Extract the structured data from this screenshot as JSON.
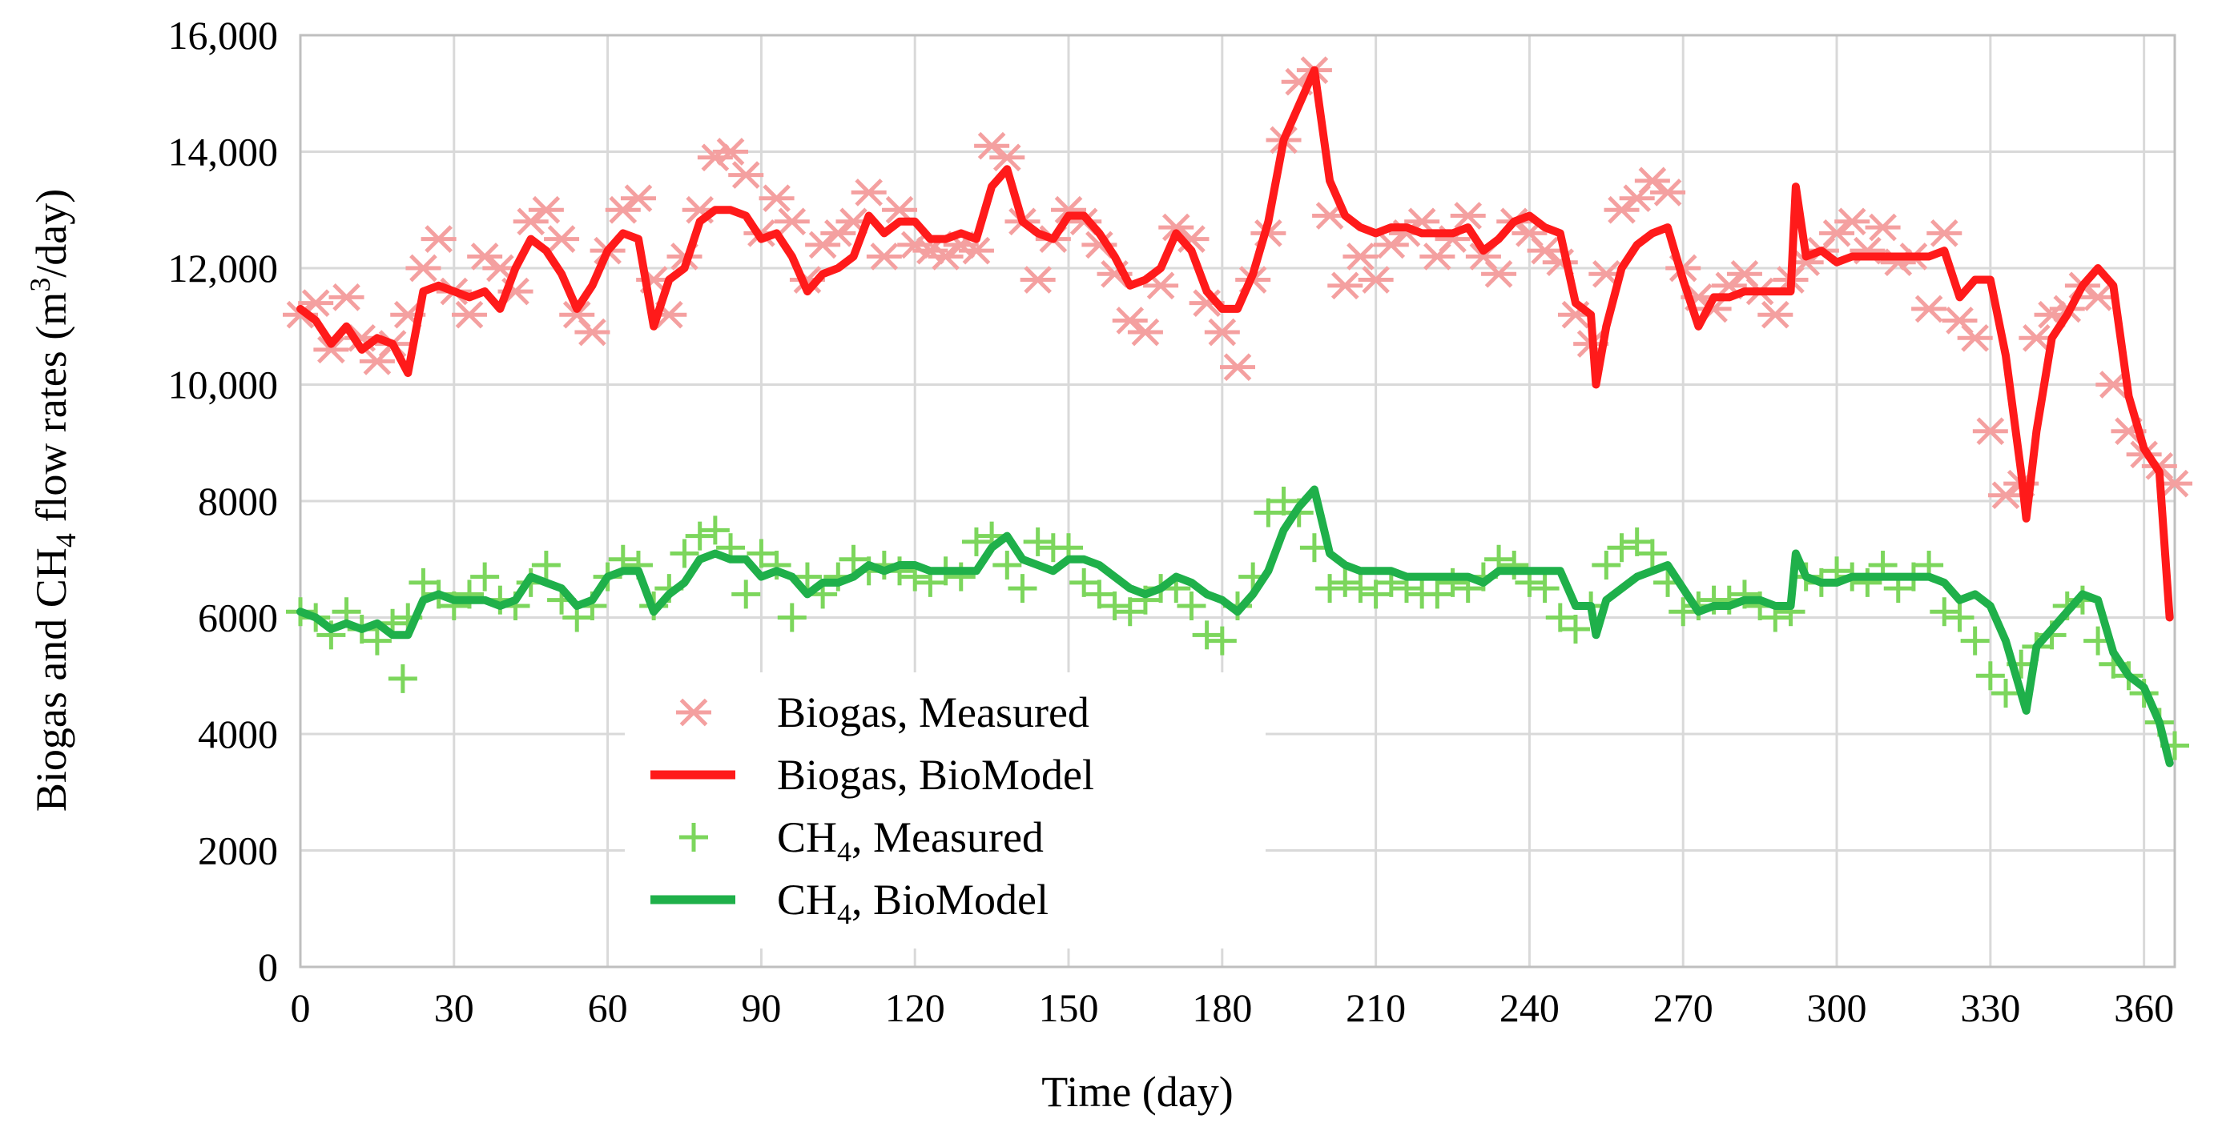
{
  "chart_data": {
    "type": "line",
    "title": "",
    "xlabel": "Time (day)",
    "ylabel": {
      "pre": "Biogas and CH",
      "sub": "4",
      "mid": " flow rates (m",
      "sup": "3",
      "post": "/day)"
    },
    "xlim": [
      0,
      366
    ],
    "ylim": [
      0,
      16000
    ],
    "xticks": [
      0,
      30,
      60,
      90,
      120,
      150,
      180,
      210,
      240,
      270,
      300,
      330,
      360
    ],
    "yticks": [
      0,
      2000,
      4000,
      6000,
      8000,
      10000,
      12000,
      14000,
      16000
    ],
    "ytick_labels": [
      "0",
      "2000",
      "4000",
      "6000",
      "8000",
      "10,000",
      "12,000",
      "14,000",
      "16,000"
    ],
    "grid": true,
    "legend_position": "lower-center",
    "colors": {
      "biogas_measured": "#f4a0a0",
      "biogas_model": "#ff1a1a",
      "ch4_measured": "#7cd65c",
      "ch4_model": "#1fb04a"
    },
    "series": [
      {
        "name": "Biogas, Measured",
        "label": {
          "pre": "Biogas, Measured",
          "sub": ""
        },
        "kind": "scatter",
        "marker": "asterisk",
        "x": [
          0,
          3,
          6,
          9,
          12,
          15,
          18,
          21,
          24,
          27,
          30,
          33,
          36,
          39,
          42,
          45,
          48,
          51,
          54,
          57,
          60,
          63,
          66,
          69,
          72,
          75,
          78,
          81,
          84,
          87,
          90,
          93,
          96,
          99,
          102,
          105,
          108,
          111,
          114,
          117,
          120,
          123,
          126,
          129,
          132,
          135,
          138,
          141,
          144,
          147,
          150,
          153,
          156,
          159,
          162,
          165,
          168,
          171,
          174,
          177,
          180,
          183,
          186,
          189,
          192,
          195,
          198,
          201,
          204,
          207,
          210,
          213,
          216,
          219,
          222,
          225,
          228,
          231,
          234,
          237,
          240,
          243,
          246,
          249,
          252,
          255,
          258,
          261,
          264,
          267,
          270,
          273,
          276,
          279,
          282,
          285,
          288,
          291,
          294,
          297,
          300,
          303,
          306,
          309,
          312,
          315,
          318,
          321,
          324,
          327,
          330,
          333,
          336,
          339,
          342,
          345,
          348,
          351,
          354,
          357,
          360,
          363,
          366
        ],
        "y": [
          11200,
          11400,
          10600,
          11500,
          10800,
          10400,
          10700,
          11200,
          12000,
          12500,
          11600,
          11200,
          12200,
          12000,
          11600,
          12800,
          13000,
          12500,
          11200,
          10900,
          12300,
          13000,
          13200,
          11800,
          11200,
          12200,
          13000,
          13900,
          14000,
          13600,
          12600,
          13200,
          12800,
          11800,
          12400,
          12600,
          12800,
          13300,
          12200,
          13000,
          12400,
          12300,
          12200,
          12400,
          12300,
          14100,
          13900,
          12800,
          11800,
          12500,
          13000,
          12800,
          12400,
          11900,
          11100,
          10900,
          11700,
          12700,
          12500,
          11400,
          10900,
          10300,
          11800,
          12600,
          14200,
          15200,
          15400,
          12900,
          11700,
          12200,
          11800,
          12400,
          12600,
          12800,
          12200,
          12500,
          12900,
          12200,
          11900,
          12800,
          12600,
          12300,
          12100,
          11200,
          10700,
          11900,
          13000,
          13200,
          13500,
          13300,
          12000,
          11500,
          11300,
          11700,
          11900,
          11600,
          11200,
          11800,
          12100,
          12300,
          12600,
          12800,
          12300,
          12700,
          12100,
          12200,
          11300,
          12600,
          11100,
          10800,
          9200,
          8100,
          8300,
          10800,
          11200,
          11300,
          11700,
          11500,
          10000,
          9200,
          8800,
          8600,
          8300
        ]
      },
      {
        "name": "Biogas, BioModel",
        "label": {
          "pre": "Biogas, BioModel",
          "sub": ""
        },
        "kind": "line",
        "x": [
          0,
          3,
          6,
          9,
          12,
          15,
          18,
          21,
          24,
          27,
          30,
          33,
          36,
          39,
          42,
          45,
          48,
          51,
          54,
          57,
          60,
          63,
          66,
          69,
          72,
          75,
          78,
          81,
          84,
          87,
          90,
          93,
          96,
          99,
          102,
          105,
          108,
          111,
          114,
          117,
          120,
          123,
          126,
          129,
          132,
          135,
          138,
          141,
          144,
          147,
          150,
          153,
          156,
          159,
          162,
          165,
          168,
          171,
          174,
          177,
          180,
          183,
          186,
          189,
          192,
          195,
          198,
          201,
          204,
          207,
          210,
          213,
          216,
          219,
          222,
          225,
          228,
          231,
          234,
          237,
          240,
          243,
          246,
          249,
          252,
          253,
          255,
          258,
          261,
          264,
          267,
          270,
          273,
          276,
          279,
          282,
          285,
          288,
          291,
          292,
          294,
          297,
          300,
          303,
          306,
          309,
          312,
          315,
          318,
          321,
          324,
          327,
          330,
          333,
          336,
          337,
          339,
          342,
          345,
          348,
          351,
          354,
          357,
          360,
          363,
          365
        ],
        "y": [
          11300,
          11100,
          10700,
          11000,
          10600,
          10800,
          10700,
          10200,
          11600,
          11700,
          11600,
          11500,
          11600,
          11300,
          12000,
          12500,
          12300,
          11900,
          11300,
          11700,
          12300,
          12600,
          12500,
          11000,
          11800,
          12000,
          12800,
          13000,
          13000,
          12900,
          12500,
          12600,
          12200,
          11600,
          11900,
          12000,
          12200,
          12900,
          12600,
          12800,
          12800,
          12500,
          12500,
          12600,
          12500,
          13400,
          13700,
          12800,
          12600,
          12500,
          12900,
          12900,
          12600,
          12200,
          11700,
          11800,
          12000,
          12600,
          12300,
          11600,
          11300,
          11300,
          11900,
          12800,
          14200,
          14800,
          15400,
          13500,
          12900,
          12700,
          12600,
          12700,
          12700,
          12600,
          12600,
          12600,
          12700,
          12300,
          12500,
          12800,
          12900,
          12700,
          12600,
          11400,
          11200,
          10000,
          11000,
          12000,
          12400,
          12600,
          12700,
          11800,
          11000,
          11500,
          11500,
          11600,
          11600,
          11600,
          11600,
          13400,
          12200,
          12300,
          12100,
          12200,
          12200,
          12200,
          12200,
          12200,
          12200,
          12300,
          11500,
          11800,
          11800,
          10500,
          8500,
          7700,
          9200,
          10800,
          11200,
          11700,
          12000,
          11700,
          9800,
          8900,
          8500,
          6000
        ]
      },
      {
        "name": "CH4, Measured",
        "label": {
          "pre": "CH",
          "sub": "4",
          "post": ", Measured"
        },
        "kind": "scatter",
        "marker": "plus",
        "x": [
          0,
          3,
          6,
          9,
          12,
          15,
          18,
          20,
          21,
          24,
          27,
          30,
          33,
          36,
          39,
          42,
          45,
          48,
          51,
          54,
          57,
          60,
          63,
          66,
          69,
          72,
          75,
          78,
          81,
          84,
          87,
          90,
          93,
          96,
          99,
          102,
          105,
          108,
          111,
          114,
          117,
          120,
          123,
          126,
          129,
          132,
          135,
          138,
          141,
          144,
          147,
          150,
          153,
          156,
          159,
          162,
          165,
          168,
          171,
          174,
          177,
          180,
          183,
          186,
          189,
          192,
          195,
          198,
          201,
          204,
          207,
          210,
          213,
          216,
          219,
          222,
          225,
          228,
          231,
          234,
          237,
          240,
          243,
          246,
          249,
          252,
          255,
          258,
          261,
          264,
          267,
          270,
          273,
          276,
          279,
          282,
          285,
          288,
          291,
          294,
          297,
          300,
          303,
          306,
          309,
          312,
          315,
          318,
          321,
          324,
          327,
          330,
          333,
          336,
          339,
          342,
          345,
          348,
          351,
          354,
          357,
          360,
          363,
          366
        ],
        "y": [
          6100,
          6000,
          5700,
          6100,
          5800,
          5600,
          5900,
          4950,
          6000,
          6600,
          6400,
          6200,
          6400,
          6700,
          6300,
          6200,
          6600,
          6900,
          6300,
          6000,
          6200,
          6700,
          7000,
          6900,
          6200,
          6500,
          7100,
          7400,
          7500,
          7200,
          6400,
          7100,
          6900,
          6000,
          6700,
          6400,
          6700,
          7000,
          6800,
          6900,
          6800,
          6700,
          6600,
          6800,
          6700,
          7300,
          7400,
          6900,
          6500,
          7300,
          7200,
          7200,
          6600,
          6400,
          6200,
          6100,
          6300,
          6500,
          6500,
          6200,
          5700,
          5600,
          6200,
          6700,
          7800,
          8000,
          7800,
          7200,
          6500,
          6600,
          6500,
          6400,
          6600,
          6500,
          6400,
          6400,
          6600,
          6500,
          6700,
          7000,
          6900,
          6600,
          6500,
          6000,
          5800,
          6200,
          6900,
          7200,
          7300,
          7100,
          6600,
          6100,
          6200,
          6300,
          6300,
          6400,
          6200,
          6000,
          6100,
          6700,
          6600,
          6800,
          6700,
          6600,
          6900,
          6500,
          6700,
          6900,
          6100,
          6000,
          5600,
          5000,
          4700,
          5200,
          5500,
          5700,
          6200,
          6300,
          5600,
          5200,
          5000,
          4700,
          4200,
          3800
        ]
      },
      {
        "name": "CH4, BioModel",
        "label": {
          "pre": "CH",
          "sub": "4",
          "post": ", BioModel"
        },
        "kind": "line",
        "x": [
          0,
          3,
          6,
          9,
          12,
          15,
          18,
          21,
          24,
          27,
          30,
          33,
          36,
          39,
          42,
          45,
          48,
          51,
          54,
          57,
          60,
          63,
          66,
          69,
          72,
          75,
          78,
          81,
          84,
          87,
          90,
          93,
          96,
          99,
          102,
          105,
          108,
          111,
          114,
          117,
          120,
          123,
          126,
          129,
          132,
          135,
          138,
          141,
          144,
          147,
          150,
          153,
          156,
          159,
          162,
          165,
          168,
          171,
          174,
          177,
          180,
          183,
          186,
          189,
          192,
          195,
          198,
          201,
          204,
          207,
          210,
          213,
          216,
          219,
          222,
          225,
          228,
          231,
          234,
          237,
          240,
          243,
          246,
          249,
          252,
          253,
          255,
          258,
          261,
          264,
          267,
          270,
          273,
          276,
          279,
          282,
          285,
          288,
          291,
          292,
          294,
          297,
          300,
          303,
          306,
          309,
          312,
          315,
          318,
          321,
          324,
          327,
          330,
          333,
          336,
          337,
          339,
          342,
          345,
          348,
          351,
          354,
          357,
          360,
          363,
          365
        ],
        "y": [
          6100,
          6000,
          5800,
          5900,
          5800,
          5900,
          5700,
          5700,
          6300,
          6400,
          6300,
          6300,
          6300,
          6200,
          6300,
          6700,
          6600,
          6500,
          6200,
          6300,
          6700,
          6800,
          6800,
          6100,
          6400,
          6600,
          7000,
          7100,
          7000,
          7000,
          6700,
          6800,
          6700,
          6400,
          6600,
          6600,
          6700,
          6900,
          6800,
          6900,
          6900,
          6800,
          6800,
          6800,
          6800,
          7200,
          7400,
          7000,
          6900,
          6800,
          7000,
          7000,
          6900,
          6700,
          6500,
          6400,
          6500,
          6700,
          6600,
          6400,
          6300,
          6100,
          6400,
          6800,
          7500,
          7900,
          8200,
          7100,
          6900,
          6800,
          6800,
          6800,
          6700,
          6700,
          6700,
          6700,
          6700,
          6600,
          6800,
          6800,
          6800,
          6800,
          6800,
          6200,
          6200,
          5700,
          6300,
          6500,
          6700,
          6800,
          6900,
          6500,
          6100,
          6200,
          6200,
          6300,
          6300,
          6200,
          6200,
          7100,
          6700,
          6600,
          6600,
          6700,
          6700,
          6700,
          6700,
          6700,
          6700,
          6600,
          6300,
          6400,
          6200,
          5600,
          4700,
          4400,
          5500,
          5800,
          6100,
          6400,
          6300,
          5400,
          5000,
          4800,
          4200,
          3500
        ]
      }
    ]
  }
}
